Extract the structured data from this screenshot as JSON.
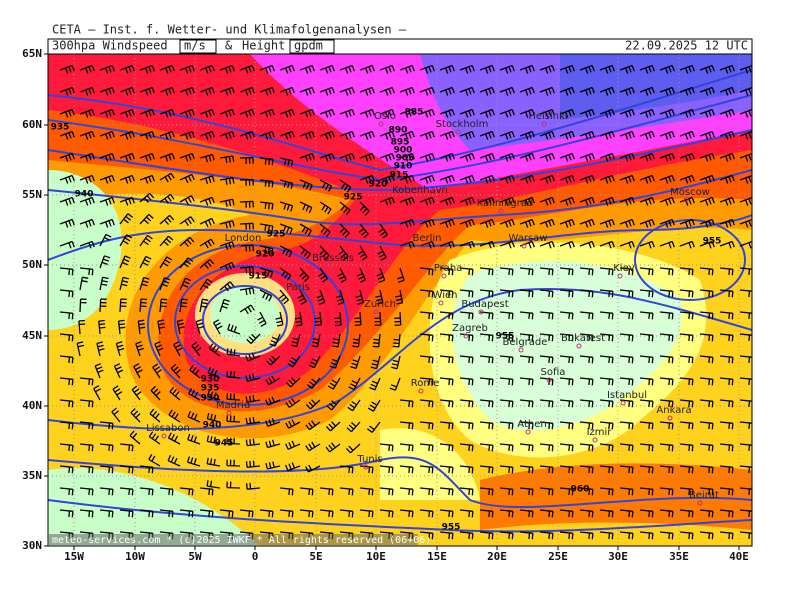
{
  "header": {
    "title": "CETA — Inst. f. Wetter- und Klimafolgenanalysen —",
    "product": "300hpa Windspeed",
    "unit1": "m/s",
    "amp": "&",
    "height": "Height",
    "unit2": "gpdm",
    "date": "22.09.2025 12 UTC"
  },
  "map": {
    "lat_labels": [
      "65N",
      "60N",
      "55N",
      "50N",
      "45N",
      "40N",
      "35N",
      "30N"
    ],
    "lon_labels": [
      "15W",
      "10W",
      "5W",
      "0",
      "5E",
      "10E",
      "15E",
      "20E",
      "25E",
      "30E",
      "35E",
      "40E"
    ],
    "cities": [
      "Oslo",
      "Stockholm",
      "Helsinki",
      "Moscow",
      "Kaliningrad",
      "Warsaw",
      "Berlin",
      "Kobenhavn",
      "London",
      "Brussels",
      "Paris",
      "Praha",
      "Kiev",
      "Wien",
      "Budapest",
      "Zurich",
      "Zagreb",
      "Belgrade",
      "Bukarest",
      "Sofia",
      "Rome",
      "Istanbul",
      "Madrid",
      "Ankara",
      "Lissabon",
      "Athen",
      "Izmir",
      "Tunis",
      "Beirut"
    ],
    "contour_labels": [
      "885",
      "890",
      "895",
      "900",
      "905",
      "910",
      "915",
      "920",
      "925",
      "935",
      "940",
      "925",
      "920",
      "915",
      "930",
      "935",
      "930",
      "940",
      "945",
      "955",
      "955",
      "960",
      "955"
    ]
  },
  "footer": "meteo-services.com * (c)2025 IWKF * All rights reserved (06+06)"
}
